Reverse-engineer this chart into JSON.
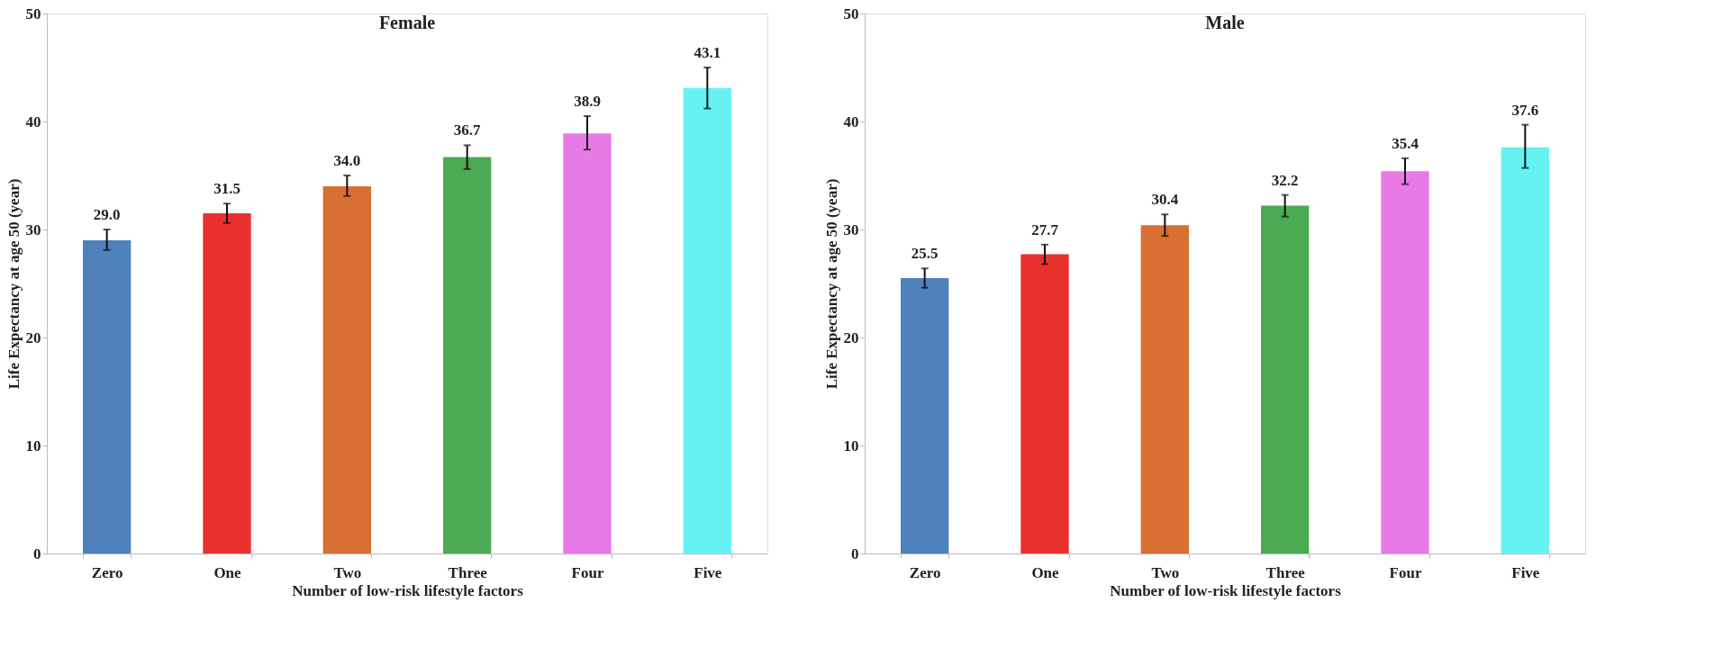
{
  "chart_data": [
    {
      "type": "bar",
      "title": "Female",
      "xlabel": "Number  of low-risk lifestyle factors",
      "ylabel": "Life Expectancy at age 50 (year)",
      "categories": [
        "Zero",
        "One",
        "Two",
        "Three",
        "Four",
        "Five"
      ],
      "values": [
        29.0,
        31.5,
        34.0,
        36.7,
        38.9,
        43.1
      ],
      "value_labels": [
        "29.0",
        "31.5",
        "34.0",
        "36.7",
        "38.9",
        "43.1"
      ],
      "colors": [
        "#4f81bd",
        "#e8312f",
        "#d86f33",
        "#4caa52",
        "#e87ae8",
        "#66f2f2"
      ],
      "errors": [
        [
          28.1,
          30.0
        ],
        [
          30.6,
          32.4
        ],
        [
          33.1,
          35.0
        ],
        [
          35.6,
          37.8
        ],
        [
          37.4,
          40.5
        ],
        [
          41.2,
          45.0
        ]
      ],
      "ylim": [
        0,
        50
      ],
      "yticks": [
        0,
        10,
        20,
        30,
        40,
        50
      ],
      "grid": false
    },
    {
      "type": "bar",
      "title": "Male",
      "xlabel": "Number  of low-risk lifestyle factors",
      "ylabel": "Life Expectancy at age 50 (year)",
      "categories": [
        "Zero",
        "One",
        "Two",
        "Three",
        "Four",
        "Five"
      ],
      "values": [
        25.5,
        27.7,
        30.4,
        32.2,
        35.4,
        37.6
      ],
      "value_labels": [
        "25.5",
        "27.7",
        "30.4",
        "32.2",
        "35.4",
        "37.6"
      ],
      "colors": [
        "#4f81bd",
        "#e8312f",
        "#d86f33",
        "#4caa52",
        "#e87ae8",
        "#66f2f2"
      ],
      "errors": [
        [
          24.6,
          26.4
        ],
        [
          26.8,
          28.6
        ],
        [
          29.4,
          31.4
        ],
        [
          31.2,
          33.2
        ],
        [
          34.2,
          36.6
        ],
        [
          35.7,
          39.7
        ]
      ],
      "ylim": [
        0,
        50
      ],
      "yticks": [
        0,
        10,
        20,
        30,
        40,
        50
      ],
      "grid": false
    }
  ]
}
